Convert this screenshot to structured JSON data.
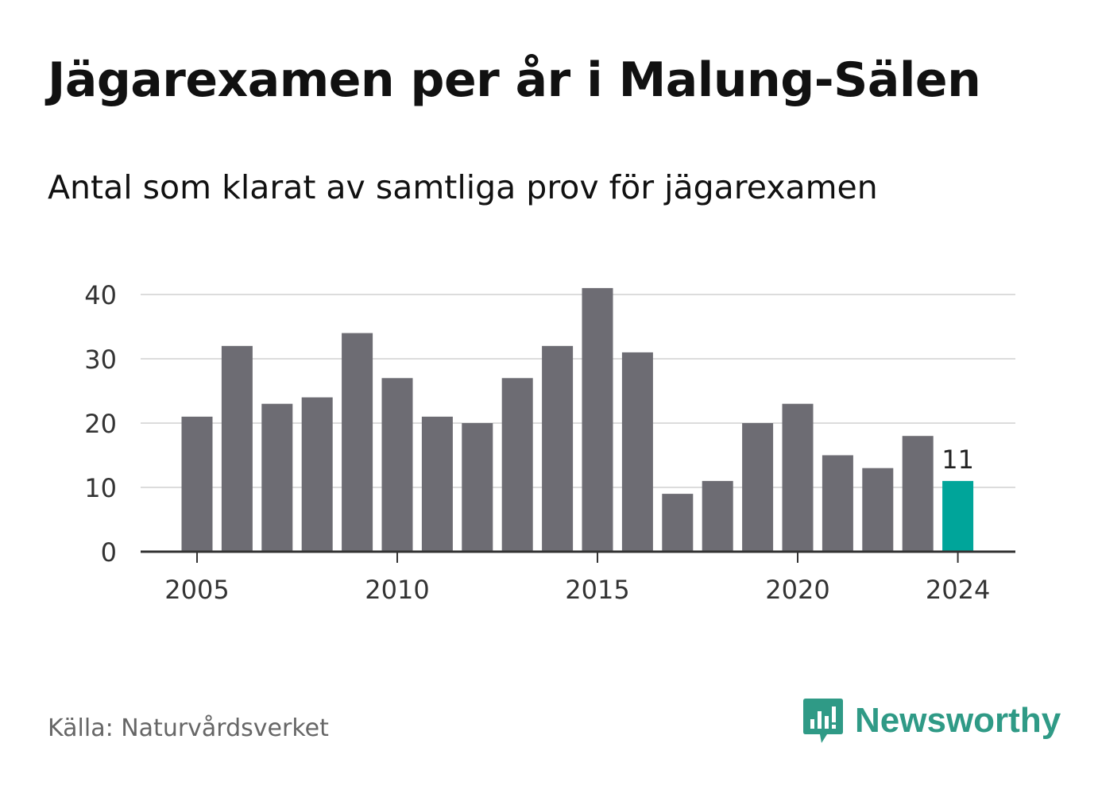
{
  "title": "Jägarexamen per år i Malung-Sälen",
  "subtitle": "Antal som klarat av samtliga prov för jägarexamen",
  "source": "Källa: Naturvårdsverket",
  "brand": "Newsworthy",
  "colors": {
    "bar": "#6d6c73",
    "highlight": "#00a59a",
    "brand": "#2f9a86"
  },
  "icons": {
    "logo": "bar-chart-speech-bubble-icon"
  },
  "chart_data": {
    "type": "bar",
    "x": [
      2005,
      2006,
      2007,
      2008,
      2009,
      2010,
      2011,
      2012,
      2013,
      2014,
      2015,
      2016,
      2017,
      2018,
      2019,
      2020,
      2021,
      2022,
      2023,
      2024
    ],
    "values": [
      21,
      32,
      23,
      24,
      34,
      27,
      21,
      20,
      27,
      32,
      41,
      31,
      9,
      11,
      20,
      23,
      15,
      13,
      18,
      11
    ],
    "highlight_x": 2024,
    "highlight_label": "11",
    "x_ticks": [
      "2005",
      "2010",
      "2015",
      "2020",
      "2024"
    ],
    "y_ticks": [
      "0",
      "10",
      "20",
      "30",
      "40"
    ],
    "ylim": [
      0,
      40
    ],
    "grid": true
  }
}
